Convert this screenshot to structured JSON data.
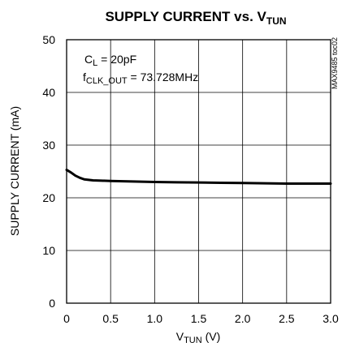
{
  "chart_data": {
    "type": "line",
    "title": {
      "main": "SUPPLY CURRENT vs. V",
      "sub": "TUN"
    },
    "xlabel": {
      "main": "V",
      "sub": "TUN",
      "suffix": " (V)"
    },
    "ylabel": "SUPPLY CURRENT (mA)",
    "xlim": [
      0,
      3.0
    ],
    "ylim": [
      0,
      50
    ],
    "xticks": [
      "0",
      "0.5",
      "1.0",
      "1.5",
      "2.0",
      "2.5",
      "3.0"
    ],
    "yticks": [
      "0",
      "10",
      "20",
      "30",
      "40",
      "50"
    ],
    "grid": true,
    "annotations": [
      {
        "main": "C",
        "sub": "L",
        "rest": " = 20pF"
      },
      {
        "main": "f",
        "sub": "CLK_OUT",
        "rest": " = 73.728MHz"
      }
    ],
    "figure_code": "MAX9485 toc02",
    "series": [
      {
        "x": [
          0,
          0.05,
          0.1,
          0.15,
          0.2,
          0.25,
          0.3,
          0.4,
          0.5,
          0.75,
          1.0,
          1.25,
          1.5,
          1.75,
          2.0,
          2.25,
          2.5,
          2.75,
          3.0
        ],
        "y": [
          25.3,
          24.8,
          24.2,
          23.8,
          23.5,
          23.4,
          23.3,
          23.25,
          23.2,
          23.1,
          23.0,
          22.95,
          22.9,
          22.85,
          22.8,
          22.75,
          22.7,
          22.7,
          22.7
        ],
        "color": "#000000"
      }
    ]
  }
}
